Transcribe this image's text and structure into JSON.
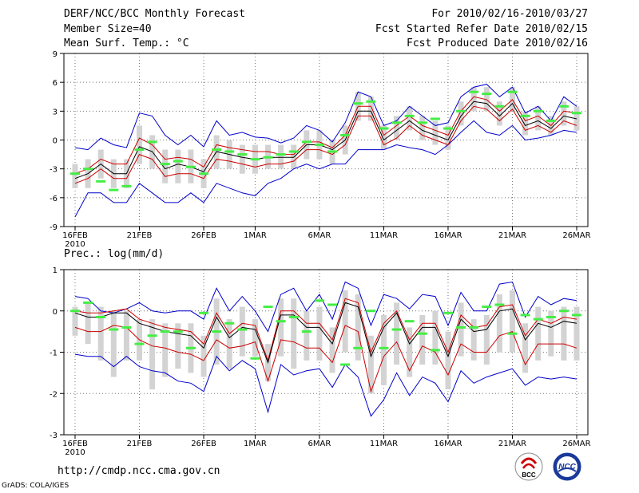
{
  "header": {
    "title": "DERF/NCC/BCC Monthly Forecast",
    "member_size": "Member Size=40",
    "variable": "Mean Surf. Temp.: °C",
    "period": "For 2010/02/16-2010/03/27",
    "started": "Fcst Started Refer Date 2010/02/15",
    "produced": "Fcst Produced Date 2010/02/16"
  },
  "footer": {
    "website": "http://cmdp.ncc.cma.gov.cn",
    "grads_credit": "GrADS: COLA/IGES",
    "logo_bcc": "BCC",
    "logo_ncc": "NCC"
  },
  "colors": {
    "mean": "#000000",
    "spread": "#cc0000",
    "extreme": "#0000cc",
    "box": "#d3d3d3",
    "obs": "#44ee44"
  },
  "chart_data": [
    {
      "type": "line",
      "title": "Mean Surf. Temp.: °C",
      "ylim": [
        -9,
        9
      ],
      "yticks": [
        -9,
        -6,
        -3,
        0,
        3,
        6,
        9
      ],
      "ytick_labels": [
        "-9",
        "-6",
        "-3",
        "0",
        "3",
        "6",
        "9"
      ],
      "x_start_day": 1,
      "x_end_day": 40,
      "xtick_days": [
        1,
        6,
        11,
        15,
        20,
        25,
        30,
        35,
        40
      ],
      "xtick_labels": [
        "16FEB",
        "21FEB",
        "26FEB",
        "1MAR",
        "6MAR",
        "11MAR",
        "16MAR",
        "21MAR",
        "26MAR"
      ],
      "xtick_sublabel": "2010",
      "grid": "dotted",
      "series": [
        {
          "name": "max",
          "color": "#0000cc",
          "values": [
            -0.8,
            -1.0,
            0.2,
            -0.5,
            -0.8,
            2.8,
            2.5,
            0.5,
            -0.5,
            0.5,
            -0.7,
            2.0,
            0.5,
            0.8,
            0.3,
            0.2,
            -0.3,
            0.2,
            1.5,
            1.0,
            -0.2,
            1.8,
            5.0,
            4.5,
            1.5,
            2.0,
            3.5,
            2.5,
            1.5,
            1.8,
            4.5,
            5.5,
            5.8,
            4.5,
            5.5,
            2.8,
            3.5,
            2.0,
            4.5,
            3.5
          ]
        },
        {
          "name": "upper",
          "color": "#cc0000",
          "values": [
            -3.5,
            -3.0,
            -2.0,
            -2.5,
            -2.5,
            0.2,
            -0.5,
            -2.0,
            -1.8,
            -2.0,
            -2.8,
            -0.5,
            -0.8,
            -1.0,
            -1.2,
            -1.2,
            -1.5,
            -1.5,
            -0.2,
            -0.2,
            -0.8,
            0.5,
            3.5,
            3.5,
            0.5,
            1.5,
            2.5,
            1.5,
            1.0,
            0.5,
            3.0,
            4.5,
            4.2,
            3.0,
            4.2,
            2.0,
            2.5,
            1.5,
            3.0,
            2.8
          ]
        },
        {
          "name": "mean",
          "color": "#000000",
          "values": [
            -4.0,
            -3.5,
            -2.5,
            -3.5,
            -3.5,
            -0.7,
            -1.2,
            -3.0,
            -2.5,
            -2.8,
            -3.3,
            -1.2,
            -1.5,
            -1.8,
            -2.0,
            -1.8,
            -1.8,
            -1.8,
            -0.5,
            -0.5,
            -1.0,
            0.0,
            3.0,
            3.0,
            0.0,
            1.0,
            2.0,
            1.0,
            0.5,
            0.0,
            2.5,
            4.0,
            3.8,
            2.5,
            3.8,
            1.5,
            2.0,
            1.2,
            2.5,
            2.2
          ]
        },
        {
          "name": "lower",
          "color": "#cc0000",
          "values": [
            -4.5,
            -4.0,
            -3.0,
            -4.0,
            -4.0,
            -1.5,
            -2.0,
            -3.8,
            -3.5,
            -3.5,
            -4.0,
            -2.0,
            -2.2,
            -2.5,
            -2.8,
            -2.5,
            -2.5,
            -2.2,
            -1.0,
            -1.0,
            -1.5,
            -0.5,
            2.5,
            2.5,
            -0.5,
            0.2,
            1.5,
            0.5,
            0.0,
            -0.5,
            2.0,
            3.5,
            3.2,
            2.0,
            3.2,
            1.0,
            1.5,
            0.8,
            2.0,
            1.5
          ]
        },
        {
          "name": "min",
          "color": "#0000cc",
          "values": [
            -8.0,
            -5.5,
            -5.5,
            -6.5,
            -6.5,
            -4.5,
            -5.5,
            -6.5,
            -6.5,
            -5.5,
            -6.5,
            -4.5,
            -5.0,
            -5.5,
            -5.8,
            -4.5,
            -4.0,
            -3.0,
            -2.5,
            -3.0,
            -2.5,
            -2.5,
            -1.0,
            -1.0,
            -1.0,
            -0.5,
            -0.8,
            -1.0,
            -1.5,
            -0.5,
            0.8,
            2.0,
            0.8,
            0.5,
            1.5,
            0.0,
            0.2,
            0.5,
            1.0,
            0.8
          ]
        },
        {
          "name": "box_high",
          "color": "#d3d3d3",
          "values": [
            -2.5,
            -2.0,
            -1.0,
            -2.0,
            -2.0,
            1.5,
            0.5,
            -1.0,
            -1.0,
            -1.0,
            -2.0,
            0.5,
            0.0,
            -0.5,
            -0.5,
            -0.5,
            -0.5,
            -0.5,
            1.0,
            1.0,
            0.0,
            1.5,
            5.0,
            4.5,
            1.5,
            2.5,
            3.5,
            2.5,
            2.0,
            1.5,
            4.0,
            5.5,
            5.5,
            4.0,
            5.5,
            3.0,
            3.5,
            2.5,
            4.0,
            3.5
          ]
        },
        {
          "name": "box_low",
          "color": "#d3d3d3",
          "values": [
            -5.0,
            -5.0,
            -4.0,
            -5.0,
            -5.0,
            -2.5,
            -3.0,
            -4.5,
            -4.5,
            -4.5,
            -5.0,
            -3.0,
            -3.0,
            -3.5,
            -3.5,
            -3.0,
            -3.0,
            -3.0,
            -2.0,
            -2.0,
            -2.5,
            -1.5,
            2.0,
            2.0,
            -1.0,
            0.0,
            1.0,
            0.0,
            -0.5,
            -1.0,
            1.5,
            3.0,
            3.0,
            1.5,
            3.0,
            0.5,
            1.0,
            0.5,
            1.5,
            1.0
          ]
        },
        {
          "name": "obs",
          "color": "#44ee44",
          "values": [
            -3.5,
            -3.0,
            -4.3,
            -5.2,
            -4.8,
            -1.0,
            -0.2,
            -2.5,
            -2.2,
            -2.8,
            -3.5,
            -1.0,
            -1.2,
            -1.5,
            -2.0,
            -1.8,
            -1.5,
            -1.2,
            -0.2,
            -0.5,
            -1.2,
            0.5,
            3.8,
            4.0,
            1.2,
            1.8,
            2.5,
            1.8,
            2.2,
            1.2,
            3.0,
            5.0,
            4.8,
            3.5,
            5.0,
            2.5,
            3.0,
            2.0,
            3.5,
            2.8
          ]
        }
      ]
    },
    {
      "type": "line",
      "title": "Prec.: log(mm/d)",
      "ylim": [
        -3,
        1
      ],
      "yticks": [
        -3,
        -2,
        -1,
        0,
        1
      ],
      "ytick_labels": [
        "-3",
        "-2",
        "-1",
        "0",
        "1"
      ],
      "x_start_day": 1,
      "x_end_day": 40,
      "xtick_days": [
        1,
        6,
        11,
        15,
        20,
        25,
        30,
        35,
        40
      ],
      "xtick_labels": [
        "16FEB",
        "21FEB",
        "26FEB",
        "1MAR",
        "6MAR",
        "11MAR",
        "16MAR",
        "21MAR",
        "26MAR"
      ],
      "xtick_sublabel": "2010",
      "grid": "dotted",
      "series": [
        {
          "name": "max",
          "color": "#0000cc",
          "values": [
            0.35,
            0.3,
            0.0,
            -0.05,
            0.05,
            0.2,
            0.0,
            -0.05,
            0.0,
            0.0,
            -0.2,
            0.55,
            0.0,
            0.35,
            0.0,
            -0.5,
            0.4,
            0.55,
            0.0,
            0.4,
            -0.2,
            0.7,
            0.55,
            -0.35,
            0.4,
            0.3,
            0.05,
            0.4,
            0.35,
            -0.35,
            0.45,
            0.0,
            0.0,
            0.65,
            0.7,
            -0.15,
            0.35,
            0.15,
            0.3,
            0.25
          ]
        },
        {
          "name": "upper",
          "color": "#cc0000",
          "values": [
            0.0,
            -0.05,
            -0.05,
            0.0,
            0.05,
            -0.2,
            -0.3,
            -0.4,
            -0.45,
            -0.5,
            -0.8,
            -0.05,
            -0.55,
            -0.3,
            -0.35,
            -1.2,
            0.0,
            0.0,
            -0.3,
            -0.3,
            -0.7,
            0.3,
            0.2,
            -1.0,
            -0.3,
            0.0,
            -0.7,
            -0.3,
            -0.3,
            -1.0,
            -0.1,
            -0.4,
            -0.35,
            0.1,
            0.15,
            -0.6,
            -0.2,
            -0.3,
            -0.15,
            -0.2
          ]
        },
        {
          "name": "mean",
          "color": "#000000",
          "values": [
            -0.05,
            -0.15,
            -0.15,
            -0.05,
            -0.05,
            -0.3,
            -0.4,
            -0.5,
            -0.55,
            -0.6,
            -0.9,
            -0.15,
            -0.65,
            -0.4,
            -0.45,
            -1.25,
            -0.1,
            -0.1,
            -0.4,
            -0.4,
            -0.8,
            0.2,
            0.1,
            -1.1,
            -0.4,
            -0.05,
            -0.8,
            -0.4,
            -0.4,
            -1.1,
            -0.2,
            -0.5,
            -0.45,
            0.0,
            0.05,
            -0.7,
            -0.3,
            -0.4,
            -0.25,
            -0.3
          ]
        },
        {
          "name": "lower",
          "color": "#cc0000",
          "values": [
            -0.4,
            -0.5,
            -0.5,
            -0.35,
            -0.4,
            -0.7,
            -0.85,
            -0.9,
            -1.0,
            -1.05,
            -1.2,
            -0.7,
            -0.9,
            -0.85,
            -0.75,
            -1.7,
            -0.7,
            -0.75,
            -0.9,
            -0.9,
            -1.25,
            -0.35,
            -0.5,
            -1.95,
            -1.1,
            -0.75,
            -1.45,
            -0.85,
            -1.0,
            -1.55,
            -0.8,
            -1.0,
            -1.0,
            -0.6,
            -0.5,
            -1.3,
            -0.8,
            -0.8,
            -0.8,
            -0.9
          ]
        },
        {
          "name": "min",
          "color": "#0000cc",
          "values": [
            -1.05,
            -1.1,
            -1.1,
            -1.35,
            -1.1,
            -1.35,
            -1.45,
            -1.5,
            -1.7,
            -1.75,
            -1.95,
            -1.1,
            -1.45,
            -1.2,
            -1.4,
            -2.45,
            -1.3,
            -1.55,
            -1.45,
            -1.4,
            -1.85,
            -1.3,
            -1.6,
            -2.55,
            -2.15,
            -1.5,
            -2.05,
            -1.6,
            -1.75,
            -2.2,
            -1.45,
            -1.75,
            -1.6,
            -1.5,
            -1.4,
            -1.8,
            -1.6,
            -1.65,
            -1.6,
            -1.65
          ]
        },
        {
          "name": "box_high",
          "color": "#d3d3d3",
          "values": [
            0.1,
            0.2,
            0.1,
            0.0,
            0.0,
            -0.2,
            -0.2,
            -0.3,
            -0.3,
            -0.3,
            -0.6,
            0.3,
            -0.2,
            0.1,
            -0.2,
            -0.8,
            0.3,
            0.3,
            0.0,
            0.1,
            -0.4,
            0.5,
            0.4,
            -0.6,
            -0.1,
            0.2,
            -0.4,
            -0.1,
            0.0,
            -0.5,
            0.2,
            -0.2,
            -0.1,
            0.4,
            0.5,
            -0.3,
            0.1,
            0.0,
            0.1,
            0.1
          ]
        },
        {
          "name": "box_low",
          "color": "#d3d3d3",
          "values": [
            -0.6,
            -0.8,
            -1.2,
            -1.6,
            -1.2,
            -1.2,
            -1.9,
            -1.6,
            -1.4,
            -1.5,
            -1.6,
            -1.3,
            -1.4,
            -1.1,
            -1.1,
            -1.7,
            -1.1,
            -1.4,
            -1.2,
            -1.2,
            -1.5,
            -1.0,
            -1.2,
            -2.0,
            -1.8,
            -1.3,
            -1.6,
            -1.3,
            -1.3,
            -1.9,
            -1.1,
            -1.2,
            -1.3,
            -1.0,
            -1.0,
            -1.5,
            -1.2,
            -1.1,
            -1.2,
            -1.2
          ]
        },
        {
          "name": "obs",
          "color": "#44ee44",
          "values": [
            0.0,
            0.2,
            -0.15,
            -0.45,
            -0.4,
            -0.8,
            -0.6,
            -0.5,
            -0.5,
            -0.9,
            -0.05,
            -0.5,
            -0.3,
            -0.45,
            -1.15,
            0.1,
            -0.25,
            -0.15,
            -0.5,
            0.25,
            0.15,
            -1.3,
            -0.9,
            0.0,
            -0.9,
            -0.45,
            -0.25,
            -0.55,
            -0.95,
            -0.05,
            -0.4,
            -0.4,
            0.1,
            0.15,
            -0.55,
            -0.1,
            -0.2,
            -0.15,
            0.0,
            -0.1
          ]
        }
      ]
    }
  ]
}
